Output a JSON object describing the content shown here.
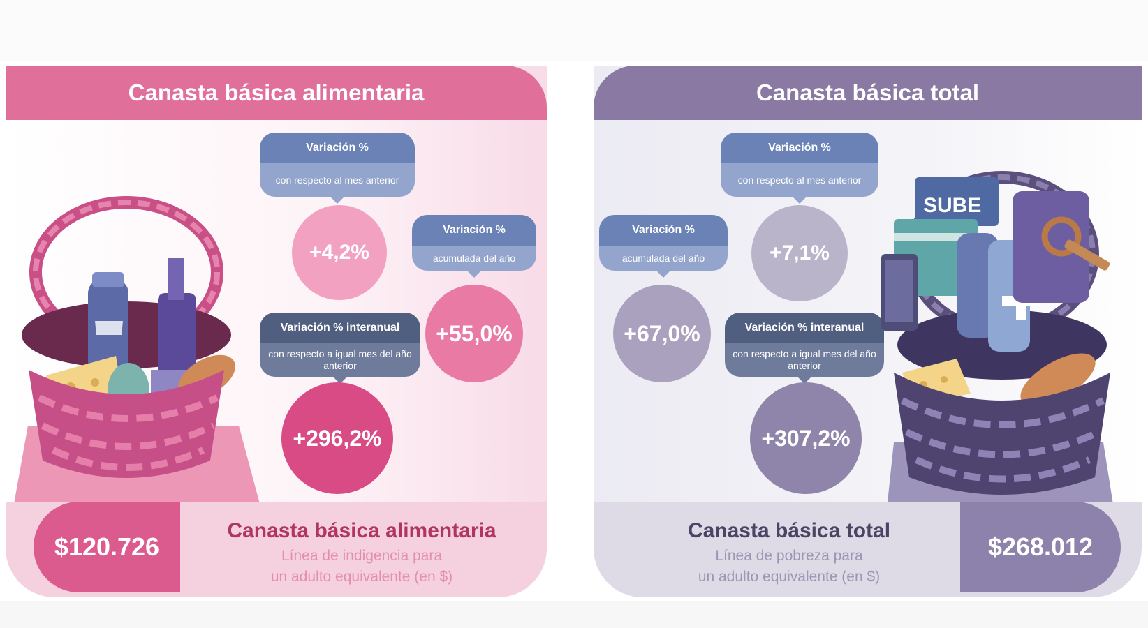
{
  "food_basket": {
    "title": "Canasta básica alimentaria",
    "monthly": {
      "label": "Variación %",
      "sublabel": "con respecto al mes anterior",
      "value": "+4,2%"
    },
    "ytd": {
      "label": "Variación %",
      "sublabel": "acumulada del año",
      "value": "+55,0%"
    },
    "yoy": {
      "label": "Variación % interanual",
      "sublabel": "con respecto a igual mes del año anterior",
      "value": "+296,2%"
    },
    "amount": "$120.726",
    "footer_title": "Canasta básica alimentaria",
    "footer_line1": "Línea de indigencia para",
    "footer_line2": "un adulto equivalente (en $)"
  },
  "total_basket": {
    "title": "Canasta básica total",
    "monthly": {
      "label": "Variación %",
      "sublabel": "con respecto al mes anterior",
      "value": "+7,1%"
    },
    "ytd": {
      "label": "Variación %",
      "sublabel": "acumulada del año",
      "value": "+67,0%"
    },
    "yoy": {
      "label": "Variación % interanual",
      "sublabel": "con respecto a igual mes del año anterior",
      "value": "+307,2%"
    },
    "amount": "$268.012",
    "footer_title": "Canasta básica total",
    "footer_line1": "Línea de pobreza para",
    "footer_line2": "un adulto equivalente (en $)",
    "card_text": "SUBE"
  },
  "colors": {
    "pink_header": "#e07099",
    "purple_header": "#8979a3",
    "label_blue": "#6b82b6",
    "label_slate": "#505e80"
  },
  "icons": [
    "food-basket-illustration",
    "total-basket-illustration"
  ]
}
